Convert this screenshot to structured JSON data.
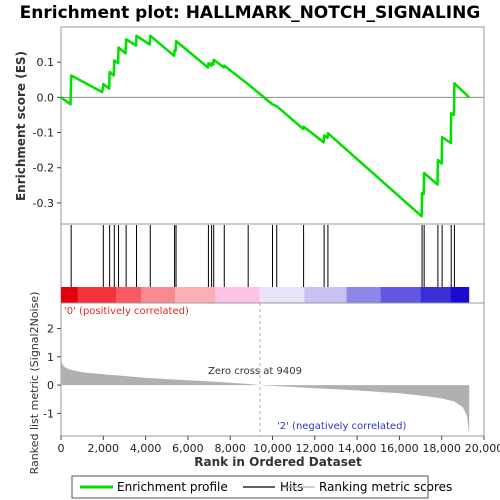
{
  "chart_data": {
    "type": "line",
    "title": "Enrichment plot: HALLMARK_NOTCH_SIGNALING",
    "top_panel": {
      "ylabel": "Enrichment score (ES)",
      "ylim": [
        -0.36,
        0.2
      ],
      "yticks": [
        -0.3,
        -0.2,
        -0.1,
        0.0,
        0.1
      ],
      "ytick_labels": [
        "-0.3",
        "-0.2",
        "-0.1",
        "0.0",
        "0.1"
      ],
      "series_color": "#00e000",
      "series": [
        {
          "name": "Enrichment profile",
          "points": [
            [
              0,
              0.0
            ],
            [
              450,
              -0.02
            ],
            [
              480,
              0.062
            ],
            [
              1950,
              0.015
            ],
            [
              2000,
              0.038
            ],
            [
              2280,
              0.025
            ],
            [
              2300,
              0.072
            ],
            [
              2500,
              0.062
            ],
            [
              2520,
              0.105
            ],
            [
              2700,
              0.097
            ],
            [
              2720,
              0.142
            ],
            [
              3050,
              0.125
            ],
            [
              3080,
              0.165
            ],
            [
              3550,
              0.147
            ],
            [
              3570,
              0.175
            ],
            [
              4200,
              0.15
            ],
            [
              4220,
              0.175
            ],
            [
              5350,
              0.118
            ],
            [
              5370,
              0.135
            ],
            [
              5420,
              0.133
            ],
            [
              5440,
              0.16
            ],
            [
              6950,
              0.085
            ],
            [
              6970,
              0.097
            ],
            [
              7100,
              0.09
            ],
            [
              7120,
              0.097
            ],
            [
              7200,
              0.093
            ],
            [
              7220,
              0.107
            ],
            [
              7700,
              0.085
            ],
            [
              7720,
              0.09
            ],
            [
              8850,
              0.037
            ],
            [
              10000,
              -0.02
            ],
            [
              10200,
              -0.025
            ],
            [
              11450,
              -0.09
            ],
            [
              11470,
              -0.083
            ],
            [
              12420,
              -0.128
            ],
            [
              12440,
              -0.108
            ],
            [
              12600,
              -0.115
            ],
            [
              12620,
              -0.102
            ],
            [
              17050,
              -0.338
            ],
            [
              17070,
              -0.272
            ],
            [
              17150,
              -0.275
            ],
            [
              17170,
              -0.215
            ],
            [
              17800,
              -0.248
            ],
            [
              17820,
              -0.178
            ],
            [
              18000,
              -0.188
            ],
            [
              18020,
              -0.113
            ],
            [
              18430,
              -0.13
            ],
            [
              18450,
              -0.045
            ],
            [
              18580,
              -0.05
            ],
            [
              18600,
              0.04
            ],
            [
              19300,
              0.0
            ]
          ]
        }
      ]
    },
    "hits": [
      480,
      2000,
      2300,
      2520,
      2720,
      3080,
      3570,
      4220,
      5370,
      5440,
      6970,
      7120,
      7220,
      7720,
      8850,
      10000,
      10200,
      11470,
      12440,
      12620,
      17070,
      17170,
      17820,
      18020,
      18450,
      18600
    ],
    "color_bar_segments": [
      {
        "from": 0,
        "to": 800,
        "color": "#e0000e"
      },
      {
        "from": 800,
        "to": 2600,
        "color": "#f4333a"
      },
      {
        "from": 2600,
        "to": 3800,
        "color": "#f85c62"
      },
      {
        "from": 3800,
        "to": 5400,
        "color": "#fb8a8f"
      },
      {
        "from": 5400,
        "to": 7300,
        "color": "#fdb0b4"
      },
      {
        "from": 7300,
        "to": 9400,
        "color": "#fbc3e8"
      },
      {
        "from": 9400,
        "to": 11500,
        "color": "#e8e3fa"
      },
      {
        "from": 11500,
        "to": 13500,
        "color": "#c8c2f4"
      },
      {
        "from": 13500,
        "to": 15100,
        "color": "#8f86ea"
      },
      {
        "from": 15100,
        "to": 17000,
        "color": "#6257e0"
      },
      {
        "from": 17000,
        "to": 18400,
        "color": "#3b2ed6"
      },
      {
        "from": 18400,
        "to": 19300,
        "color": "#1c0ad0"
      }
    ],
    "bottom_panel": {
      "ylabel": "Ranked list metric (Signal2Noise)",
      "xlabel": "Rank in Ordered Dataset",
      "ylim": [
        -1.8,
        2.9
      ],
      "yticks": [
        -1,
        0,
        1,
        2
      ],
      "ytick_labels": [
        "-1",
        "0",
        "1",
        "2"
      ],
      "fill_color": "#b0b0b0",
      "metric_profile": [
        [
          0,
          1.0
        ],
        [
          50,
          0.75
        ],
        [
          150,
          0.65
        ],
        [
          400,
          0.55
        ],
        [
          1000,
          0.45
        ],
        [
          2000,
          0.38
        ],
        [
          3000,
          0.32
        ],
        [
          4000,
          0.26
        ],
        [
          5000,
          0.21
        ],
        [
          6000,
          0.17
        ],
        [
          7000,
          0.13
        ],
        [
          8000,
          0.08
        ],
        [
          9000,
          0.03
        ],
        [
          9409,
          0.0
        ],
        [
          10000,
          -0.03
        ],
        [
          11000,
          -0.07
        ],
        [
          12000,
          -0.11
        ],
        [
          13000,
          -0.15
        ],
        [
          14000,
          -0.19
        ],
        [
          15000,
          -0.24
        ],
        [
          16000,
          -0.29
        ],
        [
          17000,
          -0.37
        ],
        [
          18000,
          -0.47
        ],
        [
          18600,
          -0.58
        ],
        [
          19000,
          -0.78
        ],
        [
          19200,
          -1.1
        ],
        [
          19300,
          -1.75
        ]
      ],
      "zero_cross_rank": 9409,
      "zero_cross_label": "Zero cross at 9409",
      "positive_label": "'0' (positively correlated)",
      "negative_label": "'2' (negatively correlated)"
    },
    "xlim": [
      0,
      20000
    ],
    "xticks": [
      0,
      2000,
      4000,
      6000,
      8000,
      10000,
      12000,
      14000,
      16000,
      18000,
      20000
    ],
    "xtick_labels": [
      "0",
      "2,000",
      "4,000",
      "6,000",
      "8,000",
      "10,000",
      "12,000",
      "14,000",
      "16,000",
      "18,000",
      "20,000"
    ],
    "legend": {
      "placement": "bottom",
      "items": [
        {
          "label": "Enrichment profile",
          "color": "#00e000"
        },
        {
          "label": "Hits",
          "color": "#000000"
        },
        {
          "label": "Ranking metric scores",
          "color": "#b0b0b0"
        }
      ]
    }
  }
}
